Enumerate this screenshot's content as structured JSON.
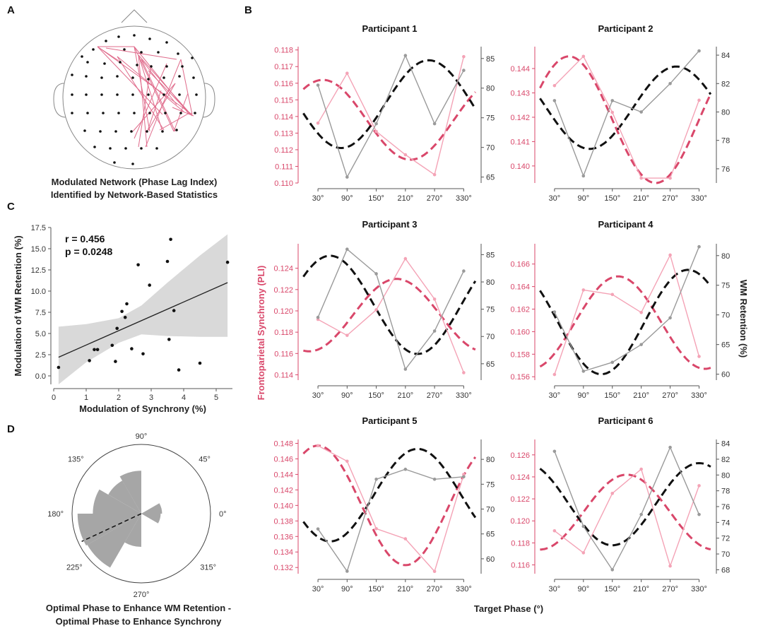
{
  "colors": {
    "synchrony": "#d9476a",
    "synchrony_light": "#f4a3b6",
    "retention": "#111111",
    "retention_raw": "#9a9a9a",
    "ci_fill": "#d9d9d9",
    "rose_fill": "#a6a6a6",
    "network_edge": "#e06b8b"
  },
  "panels": {
    "a": {
      "letter": "A",
      "caption_line1": "Modulated Network (Phase Lag Index)",
      "caption_line2": "Identified by Network-Based Statistics"
    },
    "b": {
      "letter": "B"
    },
    "c": {
      "letter": "C"
    },
    "d": {
      "letter": "D",
      "caption_line1": "Optimal Phase to Enhance WM Retention -",
      "caption_line2": "Optimal Phase to Enhance Synchrony"
    }
  },
  "panel_b_labels": {
    "left_axis": "Frontoparietal Synchrony (PLI)",
    "right_axis": "WM Retention (%)",
    "x_axis": "Target Phase (°)"
  },
  "chart_data": [
    {
      "id": "panel-c",
      "type": "scatter",
      "title": "",
      "xlabel": "Modulation of Synchrony (%)",
      "ylabel": "Modulation of WM Retention (%)",
      "xlim": [
        0,
        5.5
      ],
      "ylim": [
        -1,
        17.5
      ],
      "x_ticks": [
        0,
        1,
        2,
        3,
        4,
        5
      ],
      "y_ticks": [
        0.0,
        2.5,
        5.0,
        7.5,
        10.0,
        12.5,
        15.0,
        17.5
      ],
      "y_tick_labels": [
        "0.0",
        "2.5",
        "5.0",
        "7.5",
        "10.0",
        "12.5",
        "15.0",
        "17.5"
      ],
      "annotation_r": "r = 0.456",
      "annotation_p": "p = 0.0248",
      "points": [
        [
          0.15,
          1.0
        ],
        [
          1.1,
          1.8
        ],
        [
          1.25,
          3.1
        ],
        [
          1.35,
          3.1
        ],
        [
          1.8,
          3.6
        ],
        [
          1.9,
          1.7
        ],
        [
          1.95,
          5.6
        ],
        [
          2.1,
          7.6
        ],
        [
          2.2,
          6.9
        ],
        [
          2.25,
          8.5
        ],
        [
          2.4,
          3.2
        ],
        [
          2.6,
          13.1
        ],
        [
          2.75,
          2.6
        ],
        [
          2.95,
          10.7
        ],
        [
          3.5,
          13.5
        ],
        [
          3.55,
          4.3
        ],
        [
          3.6,
          16.1
        ],
        [
          3.7,
          7.7
        ],
        [
          3.85,
          0.7
        ],
        [
          4.5,
          1.5
        ],
        [
          5.35,
          13.4
        ]
      ],
      "fit_line": {
        "x": [
          0.15,
          5.35
        ],
        "y": [
          2.2,
          11.0
        ]
      },
      "ci_upper": [
        [
          0.15,
          5.8
        ],
        [
          1.0,
          6.1
        ],
        [
          2.0,
          6.8
        ],
        [
          2.7,
          8.3
        ],
        [
          3.5,
          11.0
        ],
        [
          4.5,
          14.2
        ],
        [
          5.35,
          16.7
        ]
      ],
      "ci_lower": [
        [
          0.15,
          -1.0
        ],
        [
          1.0,
          1.6
        ],
        [
          2.0,
          3.9
        ],
        [
          2.7,
          4.9
        ],
        [
          3.5,
          4.7
        ],
        [
          4.5,
          4.6
        ],
        [
          5.35,
          4.6
        ]
      ]
    },
    {
      "id": "panel-d",
      "type": "polar-histogram",
      "angle_labels": [
        "90°",
        "45°",
        "0°",
        "315°",
        "270°",
        "225°",
        "180°",
        "135°"
      ],
      "angle_degrees": [
        90,
        45,
        0,
        315,
        270,
        225,
        180,
        135
      ],
      "bins": [
        {
          "center_deg": 15,
          "radius": 0.3
        },
        {
          "center_deg": 105,
          "radius": 0.62
        },
        {
          "center_deg": 135,
          "radius": 0.55
        },
        {
          "center_deg": 165,
          "radius": 0.7
        },
        {
          "center_deg": 195,
          "radius": 0.92
        },
        {
          "center_deg": 225,
          "radius": 0.9
        },
        {
          "center_deg": 255,
          "radius": 0.48
        },
        {
          "center_deg": 345,
          "radius": 0.28
        }
      ],
      "bin_width_deg": 30,
      "mean_direction_deg": 205,
      "mean_length": 0.95
    },
    {
      "id": "panel-b",
      "type": "line",
      "x_tick_labels": [
        "30°",
        "90°",
        "150°",
        "210°",
        "270°",
        "330°"
      ],
      "x_values": [
        30,
        90,
        150,
        210,
        270,
        330
      ],
      "xlim": [
        -5,
        360
      ],
      "participants": [
        {
          "title": "Participant 1",
          "left_ticks": [
            0.11,
            0.111,
            0.112,
            0.113,
            0.114,
            0.115,
            0.116,
            0.117,
            0.118
          ],
          "left_tick_labels": [
            "0.110",
            "0.111",
            "0.112",
            "0.113",
            "0.114",
            "0.115",
            "0.116",
            "0.117",
            "0.118"
          ],
          "left_lim": [
            0.11,
            0.1182
          ],
          "right_ticks": [
            65,
            70,
            75,
            80,
            85
          ],
          "right_lim": [
            64,
            87
          ],
          "synchrony_raw": [
            0.1136,
            0.1166,
            0.1131,
            0.1117,
            0.1105,
            0.1176
          ],
          "synchrony_fit": {
            "mean": 0.1138,
            "amp": 0.0024,
            "peak_deg": 40
          },
          "retention_raw": [
            80.5,
            65.0,
            74.0,
            85.5,
            74.0,
            83.0
          ],
          "retention_fit": {
            "mean": 77.3,
            "amp": 7.4,
            "peak_deg": 258
          }
        },
        {
          "title": "Participant 2",
          "left_ticks": [
            0.14,
            0.141,
            0.142,
            0.143,
            0.144
          ],
          "left_tick_labels": [
            "0.140",
            "0.141",
            "0.142",
            "0.143",
            "0.144"
          ],
          "left_lim": [
            0.1393,
            0.1449
          ],
          "right_ticks": [
            76,
            78,
            80,
            82,
            84
          ],
          "right_lim": [
            75,
            84.6
          ],
          "synchrony_raw": [
            0.1433,
            0.1445,
            0.1422,
            0.1395,
            0.1395,
            0.1427
          ],
          "synchrony_fit": {
            "mean": 0.1419,
            "amp": 0.0026,
            "peak_deg": 60
          },
          "retention_raw": [
            80.8,
            75.5,
            80.8,
            80.0,
            82.0,
            84.3
          ],
          "retention_fit": {
            "mean": 80.3,
            "amp": 2.9,
            "peak_deg": 283
          }
        },
        {
          "title": "Participant 3",
          "left_ticks": [
            0.114,
            0.116,
            0.118,
            0.12,
            0.122,
            0.124
          ],
          "left_tick_labels": [
            "0.114",
            "0.116",
            "0.118",
            "0.120",
            "0.122",
            "0.124"
          ],
          "left_lim": [
            0.1135,
            0.1263
          ],
          "right_ticks": [
            65,
            70,
            75,
            80,
            85
          ],
          "right_lim": [
            62,
            87
          ],
          "synchrony_raw": [
            0.1192,
            0.1177,
            0.1201,
            0.1249,
            0.1211,
            0.1142
          ],
          "synchrony_fit": {
            "mean": 0.1196,
            "amp": 0.0034,
            "peak_deg": 192
          },
          "retention_raw": [
            73.5,
            86.0,
            81.5,
            64.0,
            71.0,
            82.0
          ],
          "retention_fit": {
            "mean": 75.8,
            "amp": 9.0,
            "peak_deg": 55
          }
        },
        {
          "title": "Participant 4",
          "left_ticks": [
            0.156,
            0.158,
            0.16,
            0.162,
            0.164,
            0.166
          ],
          "left_tick_labels": [
            "0.156",
            "0.158",
            "0.160",
            "0.162",
            "0.164",
            "0.166"
          ],
          "left_lim": [
            0.1557,
            0.1678
          ],
          "right_ticks": [
            60,
            65,
            70,
            75,
            80
          ],
          "right_lim": [
            59,
            82
          ],
          "synchrony_raw": [
            0.1562,
            0.1637,
            0.1633,
            0.1617,
            0.1668,
            0.1578
          ],
          "synchrony_fit": {
            "mean": 0.1608,
            "amp": 0.0041,
            "peak_deg": 162
          },
          "retention_raw": [
            70.5,
            60.5,
            62.0,
            65.0,
            69.5,
            81.5
          ],
          "retention_fit": {
            "mean": 68.8,
            "amp": 8.8,
            "peak_deg": 307
          }
        },
        {
          "title": "Participant 5",
          "left_ticks": [
            0.132,
            0.134,
            0.136,
            0.138,
            0.14,
            0.142,
            0.144,
            0.146,
            0.148
          ],
          "left_tick_labels": [
            "0.132",
            "0.134",
            "0.136",
            "0.138",
            "0.140",
            "0.142",
            "0.144",
            "0.146",
            "0.148"
          ],
          "left_lim": [
            0.1312,
            0.1485
          ],
          "right_ticks": [
            60,
            65,
            70,
            75,
            80
          ],
          "right_lim": [
            57,
            84
          ],
          "synchrony_raw": [
            0.1477,
            0.1457,
            0.137,
            0.1357,
            0.1315,
            0.144
          ],
          "synchrony_fit": {
            "mean": 0.14,
            "amp": 0.0077,
            "peak_deg": 30
          },
          "retention_raw": [
            66.0,
            57.5,
            76.0,
            78.0,
            76.0,
            76.5
          ],
          "retention_fit": {
            "mean": 72.8,
            "amp": 9.3,
            "peak_deg": 235
          }
        },
        {
          "title": "Participant 6",
          "left_ticks": [
            0.116,
            0.118,
            0.12,
            0.122,
            0.124,
            0.126
          ],
          "left_tick_labels": [
            "0.116",
            "0.118",
            "0.120",
            "0.122",
            "0.124",
            "0.126"
          ],
          "left_lim": [
            0.1152,
            0.1274
          ],
          "right_ticks": [
            68,
            70,
            72,
            74,
            76,
            78,
            80,
            82,
            84
          ],
          "right_lim": [
            67.5,
            84.5
          ],
          "synchrony_raw": [
            0.1191,
            0.1171,
            0.1225,
            0.1247,
            0.1159,
            0.1232
          ],
          "synchrony_fit": {
            "mean": 0.1208,
            "amp": 0.0034,
            "peak_deg": 180
          },
          "retention_raw": [
            83.0,
            73.5,
            68.0,
            75.0,
            83.5,
            75.0
          ],
          "retention_fit": {
            "mean": 76.3,
            "amp": 5.2,
            "peak_deg": 330
          }
        }
      ]
    }
  ],
  "network": {
    "electrodes": [
      [
        190,
        50
      ],
      [
        168,
        52
      ],
      [
        212,
        55
      ],
      [
        150,
        58
      ],
      [
        236,
        60
      ],
      [
        132,
        70
      ],
      [
        176,
        70
      ],
      [
        200,
        74
      ],
      [
        224,
        74
      ],
      [
        252,
        76
      ],
      [
        116,
        80
      ],
      [
        272,
        82
      ],
      [
        124,
        88
      ],
      [
        148,
        90
      ],
      [
        170,
        88
      ],
      [
        194,
        92
      ],
      [
        214,
        94
      ],
      [
        236,
        94
      ],
      [
        258,
        94
      ],
      [
        102,
        106
      ],
      [
        122,
        108
      ],
      [
        144,
        110
      ],
      [
        166,
        108
      ],
      [
        188,
        110
      ],
      [
        210,
        112
      ],
      [
        232,
        110
      ],
      [
        254,
        108
      ],
      [
        274,
        110
      ],
      [
        102,
        134
      ],
      [
        122,
        134
      ],
      [
        144,
        134
      ],
      [
        166,
        134
      ],
      [
        188,
        134
      ],
      [
        210,
        134
      ],
      [
        232,
        134
      ],
      [
        254,
        134
      ],
      [
        278,
        134
      ],
      [
        102,
        160
      ],
      [
        124,
        160
      ],
      [
        146,
        160
      ],
      [
        168,
        160
      ],
      [
        190,
        160
      ],
      [
        212,
        160
      ],
      [
        234,
        160
      ],
      [
        256,
        160
      ],
      [
        276,
        160
      ],
      [
        120,
        185
      ],
      [
        142,
        186
      ],
      [
        164,
        186
      ],
      [
        186,
        186
      ],
      [
        208,
        186
      ],
      [
        230,
        186
      ],
      [
        250,
        184
      ],
      [
        134,
        208
      ],
      [
        156,
        210
      ],
      [
        178,
        210
      ],
      [
        200,
        210
      ],
      [
        222,
        210
      ],
      [
        162,
        230
      ],
      [
        188,
        232
      ]
    ],
    "edges": [
      [
        [
          138,
          66
        ],
        [
          168,
          86
        ]
      ],
      [
        [
          138,
          66
        ],
        [
          230,
          162
        ]
      ],
      [
        [
          138,
          66
        ],
        [
          272,
          162
        ]
      ],
      [
        [
          138,
          66
        ],
        [
          190,
          66
        ]
      ],
      [
        [
          150,
          68
        ],
        [
          250,
          84
        ]
      ],
      [
        [
          166,
          80
        ],
        [
          260,
          158
        ]
      ],
      [
        [
          166,
          80
        ],
        [
          232,
          184
        ]
      ],
      [
        [
          190,
          66
        ],
        [
          268,
          162
        ]
      ],
      [
        [
          190,
          66
        ],
        [
          212,
          186
        ]
      ],
      [
        [
          190,
          66
        ],
        [
          246,
          186
        ]
      ],
      [
        [
          196,
          78
        ],
        [
          272,
          164
        ]
      ],
      [
        [
          196,
          78
        ],
        [
          230,
          186
        ]
      ],
      [
        [
          196,
          78
        ],
        [
          208,
          208
        ]
      ],
      [
        [
          200,
          84
        ],
        [
          248,
          186
        ]
      ],
      [
        [
          210,
          100
        ],
        [
          270,
          162
        ]
      ],
      [
        [
          214,
          92
        ],
        [
          196,
          208
        ]
      ],
      [
        [
          236,
          90
        ],
        [
          190,
          196
        ]
      ],
      [
        [
          256,
          84
        ],
        [
          272,
          162
        ]
      ],
      [
        [
          256,
          84
        ],
        [
          206,
          208
        ]
      ],
      [
        [
          248,
          118
        ],
        [
          210,
          184
        ]
      ],
      [
        [
          248,
          118
        ],
        [
          188,
          186
        ]
      ],
      [
        [
          246,
          186
        ],
        [
          266,
          132
        ]
      ],
      [
        [
          226,
          184
        ],
        [
          268,
          160
        ]
      ],
      [
        [
          228,
          128
        ],
        [
          208,
          188
        ]
      ],
      [
        [
          244,
          152
        ],
        [
          274,
          164
        ]
      ],
      [
        [
          200,
          84
        ],
        [
          250,
          148
        ]
      ]
    ]
  }
}
